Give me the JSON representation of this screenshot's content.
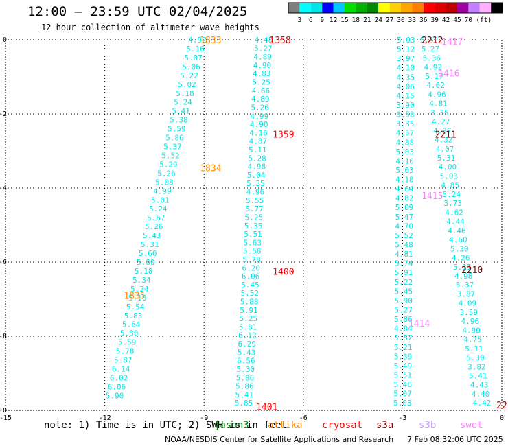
{
  "header": {
    "title": "12:00 – 23:59 UTC 02/04/2025",
    "subtitle": "12 hour collection of altimeter wave heights"
  },
  "colorbar": {
    "unit_label": "(ft)",
    "ticks": [
      "3",
      "6",
      "9",
      "12",
      "15",
      "18",
      "21",
      "24",
      "27",
      "30",
      "33",
      "36",
      "39",
      "42",
      "45",
      "70"
    ],
    "colors": [
      "#7f7f7f",
      "#00ffff",
      "#00e5e5",
      "#0000ff",
      "#00c8ff",
      "#00e000",
      "#00b000",
      "#008800",
      "#ffff00",
      "#ffd000",
      "#ffa500",
      "#ff7f00",
      "#ff0000",
      "#e00000",
      "#c00000",
      "#a000a0",
      "#c080ff",
      "#ffb0ff",
      "#000000"
    ]
  },
  "note": {
    "prefix": "note: 1) Time is in UTC; 2) SWH is in feet",
    "legend": [
      {
        "name": "jason3",
        "color": "#008000"
      },
      {
        "name": "altika",
        "color": "#ff8c00"
      },
      {
        "name": "cryosat",
        "color": "#ff0000"
      },
      {
        "name": "s3a",
        "color": "#8b0000"
      },
      {
        "name": "s3b",
        "color": "#c8a0ff"
      },
      {
        "name": "swot",
        "color": "#ff80ff"
      }
    ]
  },
  "footer": {
    "credit": "NOAA/NESDIS Center for Satellite Applications and Research",
    "generated": "7 Feb 08:32:06 UTC 2025"
  },
  "chart_data": {
    "type": "scatter",
    "xlim": [
      -15,
      0
    ],
    "ylim": [
      -10,
      0
    ],
    "x_ticks": [
      "-15",
      "-12",
      "-9",
      "-6",
      "-3",
      "0"
    ],
    "y_ticks": [
      "0",
      "-2",
      "-4",
      "-6",
      "-8",
      "-10"
    ],
    "grid": true,
    "point_color": "#00e5e5",
    "tracks": [
      {
        "x0": -9.2,
        "y0": 0.0,
        "x1": -11.7,
        "y1": -9.6,
        "values": [
          "4.92",
          "5.16",
          "5.07",
          "5.06",
          "5.22",
          "5.02",
          "5.18",
          "5.24",
          "5.41",
          "5.38",
          "5.59",
          "5.86",
          "5.37",
          "5.52",
          "5.29",
          "5.26",
          "5.08",
          "4.99",
          "5.01",
          "5.24",
          "5.67",
          "5.26",
          "5.43",
          "5.31",
          "5.60",
          "5.60",
          "5.18",
          "5.34",
          "5.24",
          "5.10",
          "5.54",
          "5.83",
          "5.64",
          "5.80",
          "5.59",
          "5.78",
          "5.87",
          "6.14",
          "6.02",
          "6.06",
          "5.90"
        ]
      },
      {
        "x0": -7.2,
        "y0": 0.0,
        "x1": -7.8,
        "y1": -9.8,
        "values": [
          "4.48",
          "5.27",
          "4.89",
          "4.90",
          "4.83",
          "5.25",
          "4.66",
          "4.89",
          "5.26",
          "4.99",
          "4.90",
          "4.16",
          "4.87",
          "5.11",
          "5.28",
          "4.98",
          "5.04",
          "5.35",
          "4.96",
          "5.55",
          "5.77",
          "5.25",
          "5.35",
          "5.51",
          "5.63",
          "5.56",
          "5.78",
          "6.20",
          "6.06",
          "5.45",
          "5.52",
          "5.88",
          "5.91",
          "5.25",
          "5.81",
          "6.12",
          "6.29",
          "5.43",
          "6.56",
          "5.30",
          "5.86",
          "5.86",
          "5.41",
          "5.85"
        ]
      },
      {
        "x0": -2.9,
        "y0": 0.0,
        "x1": -3.0,
        "y1": -9.8,
        "values": [
          "5.03",
          "5.12",
          "3.97",
          "4.10",
          "4.35",
          "4.06",
          "4.15",
          "3.90",
          "3.58",
          "3.35",
          "4.57",
          "4.88",
          "5.03",
          "4.10",
          "5.03",
          "4.18",
          "4.64",
          "4.82",
          "5.09",
          "5.47",
          "4.70",
          "5.52",
          "5.48",
          "4.81",
          "5.74",
          "5.91",
          "5.22",
          "5.45",
          "5.90",
          "5.27",
          "5.86",
          "4.84",
          "5.57",
          "5.21",
          "5.39",
          "5.49",
          "5.51",
          "5.46",
          "5.07",
          "5.03"
        ]
      },
      {
        "x0": -2.2,
        "y0": 0.0,
        "x1": -0.6,
        "y1": -9.8,
        "values": [
          "5.42",
          "5.27",
          "5.36",
          "4.92",
          "5.17",
          "4.62",
          "4.96",
          "4.81",
          "3.35",
          "4.27",
          "4.37",
          "4.32",
          "4.07",
          "5.31",
          "4.00",
          "5.03",
          "4.85",
          "5.24",
          "3.73",
          "4.62",
          "4.44",
          "4.46",
          "4.60",
          "5.30",
          "4.26",
          "5.11",
          "4.98",
          "5.37",
          "3.87",
          "4.09",
          "3.59",
          "4.96",
          "4.90",
          "4.75",
          "5.11",
          "5.30",
          "3.82",
          "5.41",
          "4.43",
          "4.40",
          "4.42"
        ]
      }
    ],
    "time_labels": [
      {
        "text": "1833",
        "x": -8.8,
        "y": 0.0,
        "sat": "altika"
      },
      {
        "text": "1834",
        "x": -8.8,
        "y": -3.45,
        "sat": "altika"
      },
      {
        "text": "1835",
        "x": -11.1,
        "y": -6.9,
        "sat": "altika"
      },
      {
        "text": "1358",
        "x": -6.7,
        "y": 0.0,
        "sat": "cryosat"
      },
      {
        "text": "1359",
        "x": -6.6,
        "y": -2.55,
        "sat": "cryosat"
      },
      {
        "text": "1400",
        "x": -6.6,
        "y": -6.25,
        "sat": "cryosat"
      },
      {
        "text": "1401",
        "x": -7.1,
        "y": -9.9,
        "sat": "cryosat"
      },
      {
        "text": "2212",
        "x": -2.1,
        "y": 0.0,
        "sat": "s3a"
      },
      {
        "text": "2211",
        "x": -1.7,
        "y": -2.55,
        "sat": "s3a"
      },
      {
        "text": "2210",
        "x": -0.9,
        "y": -6.2,
        "sat": "s3a"
      },
      {
        "text": "22",
        "x": 0.0,
        "y": -9.85,
        "sat": "s3a"
      },
      {
        "text": "1417",
        "x": -1.5,
        "y": -0.05,
        "sat": "swot"
      },
      {
        "text": "1416",
        "x": -1.6,
        "y": -0.9,
        "sat": "swot"
      },
      {
        "text": "1415",
        "x": -2.1,
        "y": -4.2,
        "sat": "swot"
      },
      {
        "text": "1414",
        "x": -2.5,
        "y": -7.65,
        "sat": "swot"
      }
    ]
  }
}
